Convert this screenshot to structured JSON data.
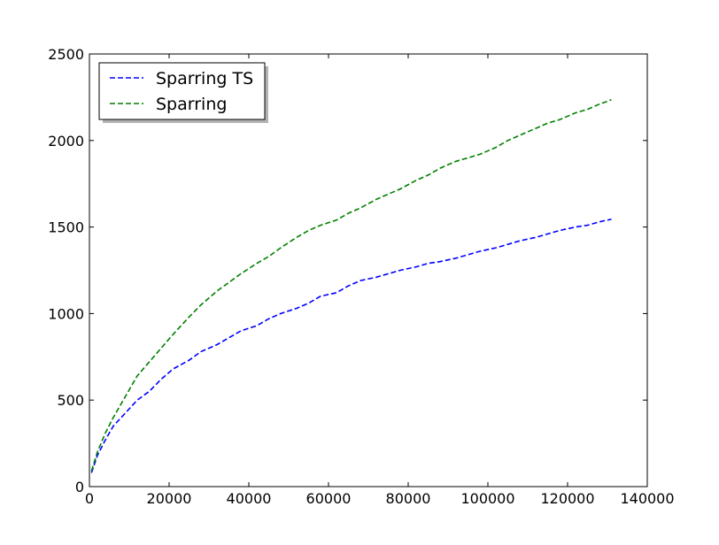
{
  "chart_data": {
    "type": "line",
    "title": "",
    "xlabel": "",
    "ylabel": "",
    "xlim": [
      0,
      140000
    ],
    "ylim": [
      0,
      2500
    ],
    "x_ticks": [
      0,
      20000,
      40000,
      60000,
      80000,
      100000,
      120000,
      140000
    ],
    "y_ticks": [
      0,
      500,
      1000,
      1500,
      2000,
      2500
    ],
    "x_tick_labels": [
      "0",
      "20000",
      "40000",
      "60000",
      "80000",
      "100000",
      "120000",
      "140000"
    ],
    "y_tick_labels": [
      "0",
      "500",
      "1000",
      "1500",
      "2000",
      "2500"
    ],
    "grid": false,
    "legend_position": "top-left",
    "series": [
      {
        "name": "Sparring TS",
        "color": "#0000ff",
        "style": "dashed",
        "x": [
          500,
          2000,
          4000,
          6000,
          8000,
          10000,
          12000,
          15000,
          18000,
          21000,
          25000,
          28000,
          32000,
          35000,
          38000,
          42000,
          45000,
          48000,
          52000,
          55000,
          58000,
          62000,
          65000,
          68000,
          72000,
          75000,
          78000,
          82000,
          85000,
          88000,
          92000,
          95000,
          98000,
          102000,
          105000,
          108000,
          112000,
          115000,
          118000,
          122000,
          125000,
          128000,
          131000
        ],
        "y": [
          80,
          180,
          270,
          350,
          400,
          450,
          500,
          550,
          620,
          680,
          730,
          780,
          820,
          860,
          900,
          930,
          970,
          1000,
          1030,
          1060,
          1100,
          1120,
          1160,
          1190,
          1210,
          1230,
          1250,
          1270,
          1290,
          1300,
          1320,
          1340,
          1360,
          1380,
          1400,
          1420,
          1440,
          1460,
          1480,
          1500,
          1510,
          1530,
          1545
        ]
      },
      {
        "name": "Sparring",
        "color": "#008000",
        "style": "dashed",
        "x": [
          500,
          2000,
          4000,
          6000,
          8000,
          10000,
          12000,
          15000,
          18000,
          21000,
          25000,
          28000,
          32000,
          35000,
          38000,
          42000,
          45000,
          48000,
          52000,
          55000,
          58000,
          62000,
          65000,
          68000,
          72000,
          75000,
          78000,
          82000,
          85000,
          88000,
          92000,
          95000,
          98000,
          102000,
          105000,
          108000,
          112000,
          115000,
          118000,
          122000,
          125000,
          128000,
          131000
        ],
        "y": [
          90,
          200,
          310,
          400,
          480,
          560,
          640,
          720,
          800,
          880,
          980,
          1050,
          1130,
          1180,
          1230,
          1290,
          1330,
          1380,
          1440,
          1480,
          1510,
          1540,
          1580,
          1610,
          1660,
          1690,
          1720,
          1770,
          1800,
          1840,
          1880,
          1900,
          1920,
          1960,
          2000,
          2030,
          2070,
          2100,
          2120,
          2160,
          2180,
          2210,
          2235
        ]
      }
    ]
  }
}
